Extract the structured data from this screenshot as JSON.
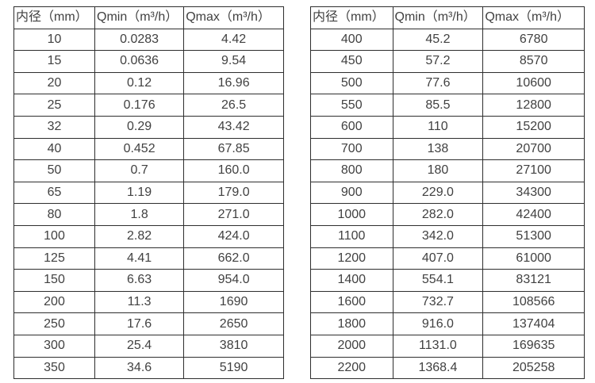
{
  "chart_data": [
    {
      "type": "table",
      "title": "",
      "columns": [
        "内径（mm）",
        "Qmin（m³/h）",
        "Qmax（m³/h）"
      ],
      "rows": [
        [
          "10",
          "0.0283",
          "4.42"
        ],
        [
          "15",
          "0.0636",
          "9.54"
        ],
        [
          "20",
          "0.12",
          "16.96"
        ],
        [
          "25",
          "0.176",
          "26.5"
        ],
        [
          "32",
          "0.29",
          "43.42"
        ],
        [
          "40",
          "0.452",
          "67.85"
        ],
        [
          "50",
          "0.7",
          "160.0"
        ],
        [
          "65",
          "1.19",
          "179.0"
        ],
        [
          "80",
          "1.8",
          "271.0"
        ],
        [
          "100",
          "2.82",
          "424.0"
        ],
        [
          "125",
          "4.41",
          "662.0"
        ],
        [
          "150",
          "6.63",
          "954.0"
        ],
        [
          "200",
          "11.3",
          "1690"
        ],
        [
          "250",
          "17.6",
          "2650"
        ],
        [
          "300",
          "25.4",
          "3810"
        ],
        [
          "350",
          "34.6",
          "5190"
        ]
      ]
    },
    {
      "type": "table",
      "title": "",
      "columns": [
        "内径（mm）",
        "Qmin（m³/h）",
        "Qmax（m³/h）"
      ],
      "rows": [
        [
          "400",
          "45.2",
          "6780"
        ],
        [
          "450",
          "57.2",
          "8570"
        ],
        [
          "500",
          "77.6",
          "10600"
        ],
        [
          "550",
          "85.5",
          "12800"
        ],
        [
          "600",
          "110",
          "15200"
        ],
        [
          "700",
          "138",
          "20700"
        ],
        [
          "800",
          "180",
          "27100"
        ],
        [
          "900",
          "229.0",
          "34300"
        ],
        [
          "1000",
          "282.0",
          "42400"
        ],
        [
          "1100",
          "342.0",
          "51300"
        ],
        [
          "1200",
          "407.0",
          "61000"
        ],
        [
          "1400",
          "554.1",
          "83121"
        ],
        [
          "1600",
          "732.7",
          "108566"
        ],
        [
          "1800",
          "916.0",
          "137404"
        ],
        [
          "2000",
          "1131.0",
          "169635"
        ],
        [
          "2200",
          "1368.4",
          "205258"
        ]
      ]
    }
  ],
  "colors": {
    "border": "#2e2e2e",
    "text": "#414141",
    "background": "#ffffff"
  }
}
